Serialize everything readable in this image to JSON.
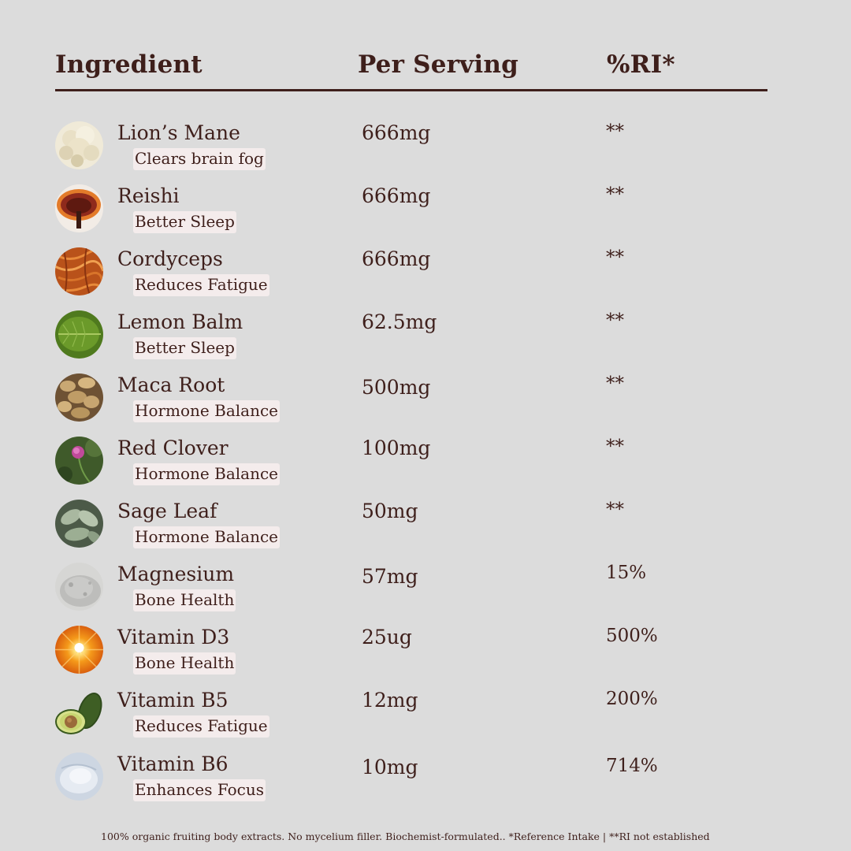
{
  "header": {
    "ingredient": "Ingredient",
    "per_serving": "Per Serving",
    "ri": "%RI*"
  },
  "rows": [
    {
      "name": "Lion’s Mane",
      "benefit": "Clears brain fog",
      "amount": "666mg",
      "ri": "**",
      "icon": "lions-mane-icon"
    },
    {
      "name": "Reishi",
      "benefit": "Better Sleep",
      "amount": "666mg",
      "ri": "**",
      "icon": "reishi-icon"
    },
    {
      "name": "Cordyceps",
      "benefit": "Reduces Fatigue",
      "amount": "666mg",
      "ri": "**",
      "icon": "cordyceps-icon"
    },
    {
      "name": "Lemon Balm",
      "benefit": "Better Sleep",
      "amount": "62.5mg",
      "ri": "**",
      "icon": "lemon-balm-icon"
    },
    {
      "name": "Maca Root",
      "benefit": "Hormone Balance",
      "amount": "500mg",
      "ri": "**",
      "icon": "maca-root-icon"
    },
    {
      "name": "Red Clover",
      "benefit": "Hormone Balance",
      "amount": "100mg",
      "ri": "**",
      "icon": "red-clover-icon"
    },
    {
      "name": "Sage Leaf",
      "benefit": "Hormone Balance",
      "amount": "50mg",
      "ri": "**",
      "icon": "sage-leaf-icon"
    },
    {
      "name": "Magnesium",
      "benefit": "Bone Health",
      "amount": "57mg",
      "ri": "15%",
      "icon": "magnesium-powder-icon"
    },
    {
      "name": "Vitamin D3",
      "benefit": "Bone Health",
      "amount": "25ug",
      "ri": "500%",
      "icon": "sun-icon"
    },
    {
      "name": "Vitamin B5",
      "benefit": "Reduces Fatigue",
      "amount": "12mg",
      "ri": "200%",
      "icon": "avocado-icon"
    },
    {
      "name": "Vitamin B6",
      "benefit": "Enhances Focus",
      "amount": "10mg",
      "ri": "714%",
      "icon": "b6-powder-icon"
    }
  ],
  "footer": "100% organic fruiting body extracts. No mycelium filler. Biochemist-formulated.. *Reference Intake | **RI not established",
  "colors": {
    "background": "#dcdcdc",
    "text": "#3e1f1b",
    "benefit_bg": "#f4ecec"
  }
}
